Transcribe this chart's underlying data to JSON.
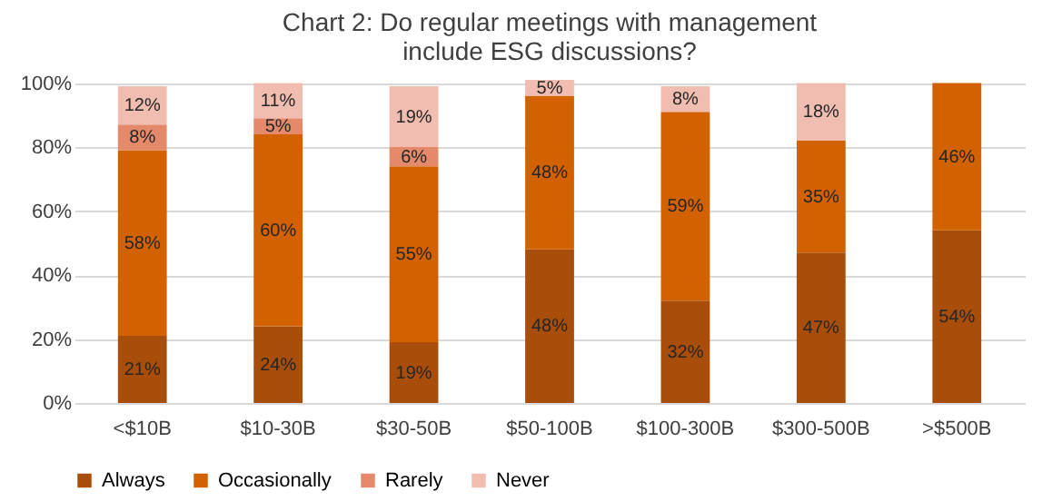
{
  "chart_data": {
    "type": "bar",
    "stacked": true,
    "title": "Chart 2: Do regular meetings with management include ESG discussions?",
    "categories": [
      "<$10B",
      "$10-30B",
      "$30-50B",
      "$50-100B",
      "$100-300B",
      "$300-500B",
      ">$500B"
    ],
    "series": [
      {
        "name": "Always",
        "color": "#a84e0a",
        "values": [
          21,
          24,
          19,
          48,
          32,
          47,
          54
        ],
        "value_labels": [
          "21%",
          "24%",
          "19%",
          "48%",
          "32%",
          "47%",
          "54%"
        ]
      },
      {
        "name": "Occasionally",
        "color": "#d26100",
        "values": [
          58,
          60,
          55,
          48,
          59,
          35,
          46
        ],
        "value_labels": [
          "58%",
          "60%",
          "55%",
          "48%",
          "59%",
          "35%",
          "46%"
        ]
      },
      {
        "name": "Rarely",
        "color": "#e48a6a",
        "values": [
          8,
          5,
          6,
          null,
          null,
          null,
          null
        ],
        "value_labels": [
          "8%",
          "5%",
          "6%",
          null,
          null,
          null,
          null
        ]
      },
      {
        "name": "Never",
        "color": "#f1bdb0",
        "values": [
          12,
          11,
          19,
          5,
          8,
          18,
          null
        ],
        "value_labels": [
          "12%",
          "11%",
          "19%",
          "5%",
          "8%",
          "18%",
          null
        ]
      }
    ],
    "ylim": [
      0,
      101
    ],
    "yticks": [
      {
        "value": 0,
        "label": "0%"
      },
      {
        "value": 20,
        "label": "20%"
      },
      {
        "value": 40,
        "label": "40%"
      },
      {
        "value": 60,
        "label": "60%"
      },
      {
        "value": 80,
        "label": "80%"
      },
      {
        "value": 100,
        "label": "100%"
      }
    ],
    "grid": "y",
    "legend": "bottom"
  }
}
